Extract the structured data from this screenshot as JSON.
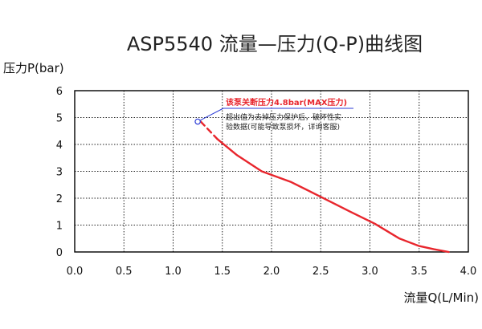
{
  "chart_data": {
    "type": "line",
    "title": "ASP5540 流量—压力(Q-P)曲线图",
    "xlabel": "流量Q(L/Min)",
    "ylabel": "压力P(bar)",
    "xlim": [
      0,
      4
    ],
    "ylim": [
      0,
      6
    ],
    "x_ticks": [
      "0.0",
      "0.5",
      "1.0",
      "1.5",
      "2.0",
      "2.5",
      "3.0",
      "3.5",
      "4.0"
    ],
    "y_ticks": [
      "0",
      "1",
      "2",
      "3",
      "4",
      "5",
      "6"
    ],
    "grid": true,
    "grid_style": "dotted",
    "series": [
      {
        "color": "#e8262d",
        "points": [
          [
            1.28,
            4.85
          ],
          [
            1.45,
            4.2
          ],
          [
            1.65,
            3.6
          ],
          [
            1.9,
            3.0
          ],
          [
            2.2,
            2.6
          ],
          [
            2.5,
            2.05
          ],
          [
            2.8,
            1.5
          ],
          [
            3.05,
            1.05
          ],
          [
            3.3,
            0.5
          ],
          [
            3.5,
            0.22
          ],
          [
            3.65,
            0.1
          ],
          [
            3.8,
            0.0
          ]
        ],
        "dashed_segment_end_x": 1.5
      }
    ],
    "annotations": {
      "marker_point": [
        1.25,
        4.85
      ],
      "max_pressure_note": "该泵关断压力4.8bar(MAX压力)",
      "warning_line1": "超出值为去掉压力保护后，破坏性实",
      "warning_line2": "验数据(可能导致泵损坏，详询客服)",
      "highlight_color": "#e8262d",
      "leader_color": "#2b3bd6"
    }
  }
}
